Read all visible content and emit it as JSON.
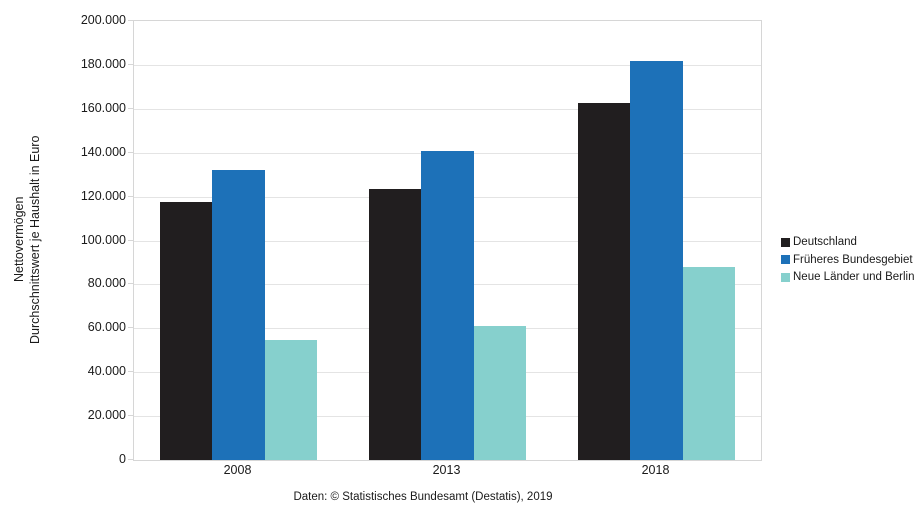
{
  "chart_data": {
    "type": "bar",
    "categories": [
      "2008",
      "2013",
      "2018"
    ],
    "series": [
      {
        "name": "Deutschland",
        "color": "#211e1f",
        "values": [
          117700,
          123600,
          162800
        ]
      },
      {
        "name": "Früheres Bundesgebiet",
        "color": "#1d71b8",
        "values": [
          132200,
          140600,
          182000
        ]
      },
      {
        "name": "Neue Länder und Berlin",
        "color": "#86d0cd",
        "values": [
          54600,
          61200,
          88000
        ]
      }
    ],
    "title": "",
    "xlabel": "",
    "ylabel_line1": "Nettovermögen",
    "ylabel_line2": "Durchschnittswert je Haushalt in Euro",
    "ylim": [
      0,
      200000
    ],
    "ytick_step": 20000,
    "ytick_labels": [
      "0",
      "20.000",
      "40.000",
      "60.000",
      "80.000",
      "100.000",
      "120.000",
      "140.000",
      "160.000",
      "180.000",
      "200.000"
    ],
    "grid": true,
    "legend_position": "right"
  },
  "footer": {
    "source": "Daten: © Statistisches Bundesamt (Destatis), 2019"
  }
}
